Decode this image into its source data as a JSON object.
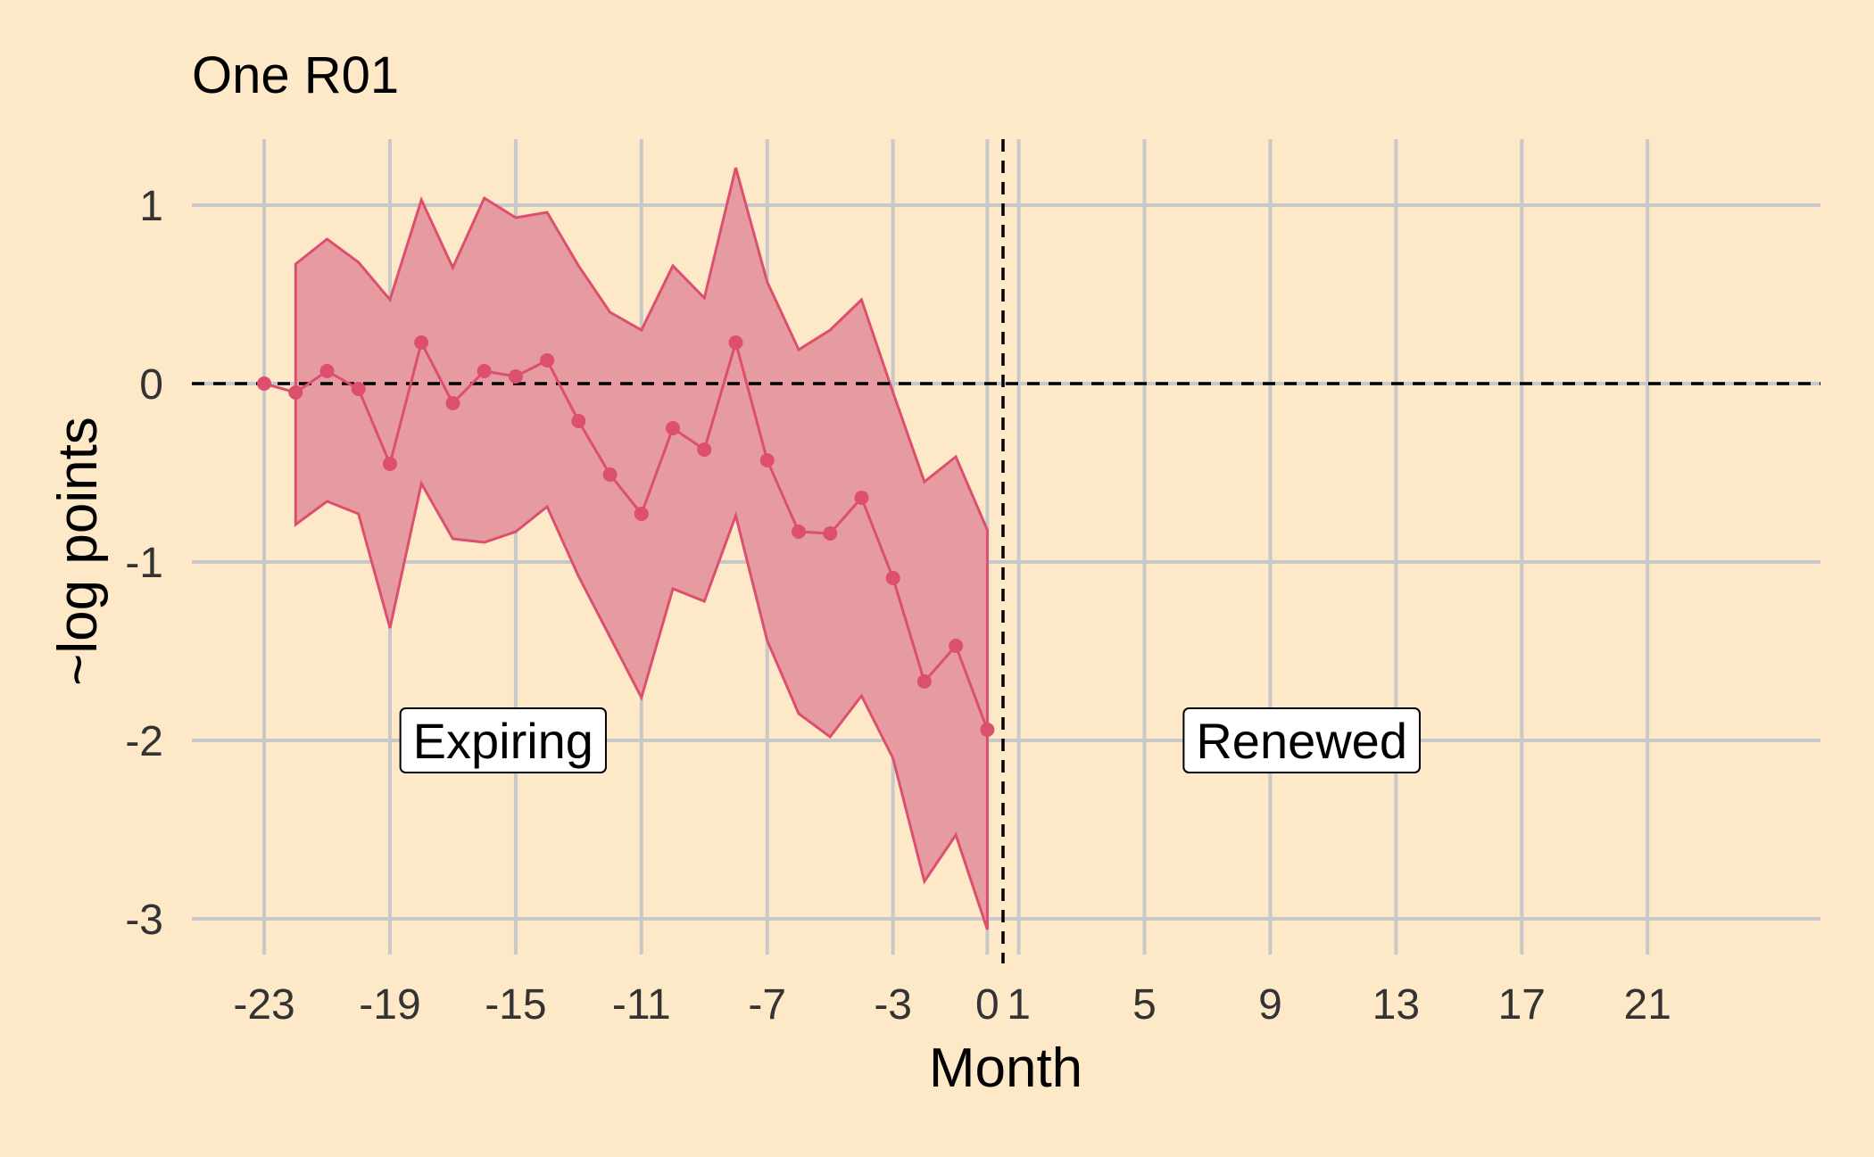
{
  "chart_data": {
    "type": "line",
    "title": "One R01",
    "xlabel": "Month",
    "ylabel": "~log points",
    "xlim": [
      -25.3,
      26.5
    ],
    "ylim": [
      -3.2,
      1.4
    ],
    "x_ticks": [
      -23,
      -19,
      -15,
      -11,
      -7,
      -3,
      0,
      1,
      5,
      9,
      13,
      17,
      21
    ],
    "y_ticks": [
      -3,
      -2,
      -1,
      0,
      1
    ],
    "grid": true,
    "reference_lines": {
      "horizontal_y": 0,
      "vertical_x": 0.5
    },
    "series": [
      {
        "x": [
          -23,
          -22,
          -21,
          -20,
          -19,
          -18,
          -17,
          -16,
          -15,
          -14,
          -13,
          -12,
          -11,
          -10,
          -9,
          -8,
          -7,
          -6,
          -5,
          -4,
          -3,
          -2,
          -1,
          0
        ],
        "values": [
          0.0,
          -0.05,
          0.07,
          -0.03,
          -0.45,
          0.23,
          -0.11,
          0.07,
          0.04,
          0.13,
          -0.21,
          -0.51,
          -0.73,
          -0.25,
          -0.37,
          0.23,
          -0.43,
          -0.83,
          -0.84,
          -0.64,
          -1.09,
          -1.67,
          -1.47,
          -1.94
        ],
        "ci_upper": [
          null,
          0.67,
          0.81,
          0.68,
          0.47,
          1.03,
          0.65,
          1.04,
          0.93,
          0.96,
          0.66,
          0.4,
          0.3,
          0.66,
          0.48,
          1.21,
          0.57,
          0.19,
          0.3,
          0.47,
          -0.05,
          -0.55,
          -0.41,
          -0.82
        ],
        "ci_lower": [
          null,
          -0.79,
          -0.66,
          -0.73,
          -1.37,
          -0.56,
          -0.87,
          -0.89,
          -0.83,
          -0.69,
          -1.08,
          -1.42,
          -1.76,
          -1.15,
          -1.22,
          -0.74,
          -1.44,
          -1.85,
          -1.98,
          -1.75,
          -2.1,
          -2.79,
          -2.53,
          -3.06
        ]
      }
    ],
    "annotations": [
      {
        "text": "Expiring",
        "x": -15.4,
        "y": -2.0
      },
      {
        "text": "Renewed",
        "x": 10.0,
        "y": -2.0
      }
    ]
  }
}
